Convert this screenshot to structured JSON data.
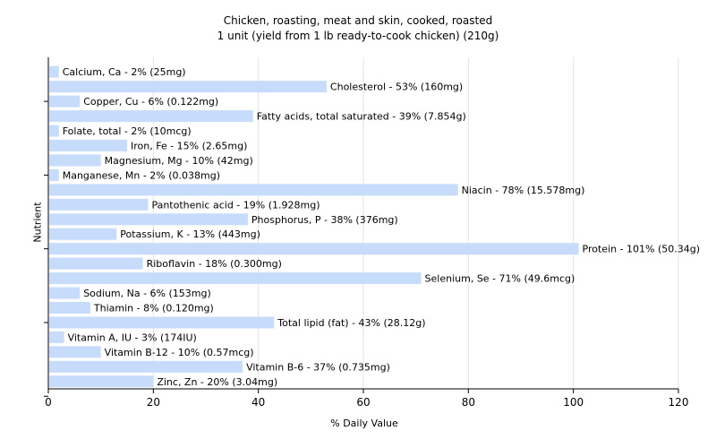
{
  "chart_data": {
    "type": "bar",
    "orientation": "horizontal",
    "title": "Chicken, roasting, meat and skin, cooked, roasted",
    "subtitle": "1 unit (yield from 1 lb ready-to-cook chicken) (210g)",
    "xlabel": "% Daily Value",
    "ylabel": "Nutrient",
    "xlim": [
      0,
      120
    ],
    "xticks": [
      "0",
      "20",
      "40",
      "60",
      "80",
      "100",
      "120"
    ],
    "grid": true,
    "bar_color": "#c6dcfa",
    "categories": [
      "Calcium, Ca",
      "Cholesterol",
      "Copper, Cu",
      "Fatty acids, total saturated",
      "Folate, total",
      "Iron, Fe",
      "Magnesium, Mg",
      "Manganese, Mn",
      "Niacin",
      "Pantothenic acid",
      "Phosphorus, P",
      "Potassium, K",
      "Protein",
      "Riboflavin",
      "Selenium, Se",
      "Sodium, Na",
      "Thiamin",
      "Total lipid (fat)",
      "Vitamin A, IU",
      "Vitamin B-12",
      "Vitamin B-6",
      "Zinc, Zn"
    ],
    "values": [
      2,
      53,
      6,
      39,
      2,
      15,
      10,
      2,
      78,
      19,
      38,
      13,
      101,
      18,
      71,
      6,
      8,
      43,
      3,
      10,
      37,
      20
    ],
    "labels": [
      "Calcium, Ca - 2% (25mg)",
      "Cholesterol - 53% (160mg)",
      "Copper, Cu - 6% (0.122mg)",
      "Fatty acids, total saturated - 39% (7.854g)",
      "Folate, total - 2% (10mcg)",
      "Iron, Fe - 15% (2.65mg)",
      "Magnesium, Mg - 10% (42mg)",
      "Manganese, Mn - 2% (0.038mg)",
      "Niacin - 78% (15.578mg)",
      "Pantothenic acid - 19% (1.928mg)",
      "Phosphorus, P - 38% (376mg)",
      "Potassium, K - 13% (443mg)",
      "Protein - 101% (50.34g)",
      "Riboflavin - 18% (0.300mg)",
      "Selenium, Se - 71% (49.6mcg)",
      "Sodium, Na - 6% (153mg)",
      "Thiamin - 8% (0.120mg)",
      "Total lipid (fat) - 43% (28.12g)",
      "Vitamin A, IU - 3% (174IU)",
      "Vitamin B-12 - 10% (0.57mcg)",
      "Vitamin B-6 - 37% (0.735mg)",
      "Zinc, Zn - 20% (3.04mg)"
    ]
  }
}
